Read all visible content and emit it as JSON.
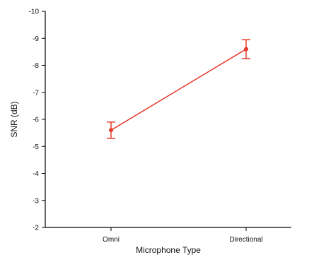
{
  "chart_data": {
    "type": "line",
    "title": "",
    "xlabel": "Microphone Type",
    "ylabel": "SNR (dB)",
    "categories": [
      "Omni",
      "Directional"
    ],
    "ylim": [
      -2,
      -10
    ],
    "yticks": [
      "-10",
      "-9",
      "-8",
      "-7",
      "-6",
      "-5",
      "-4",
      "-3",
      "-2"
    ],
    "series": [
      {
        "values": [
          -5.6,
          -8.6
        ],
        "error": [
          0.3,
          0.35
        ],
        "color": "#e53b2c"
      }
    ],
    "grid": false,
    "legend": "none"
  }
}
